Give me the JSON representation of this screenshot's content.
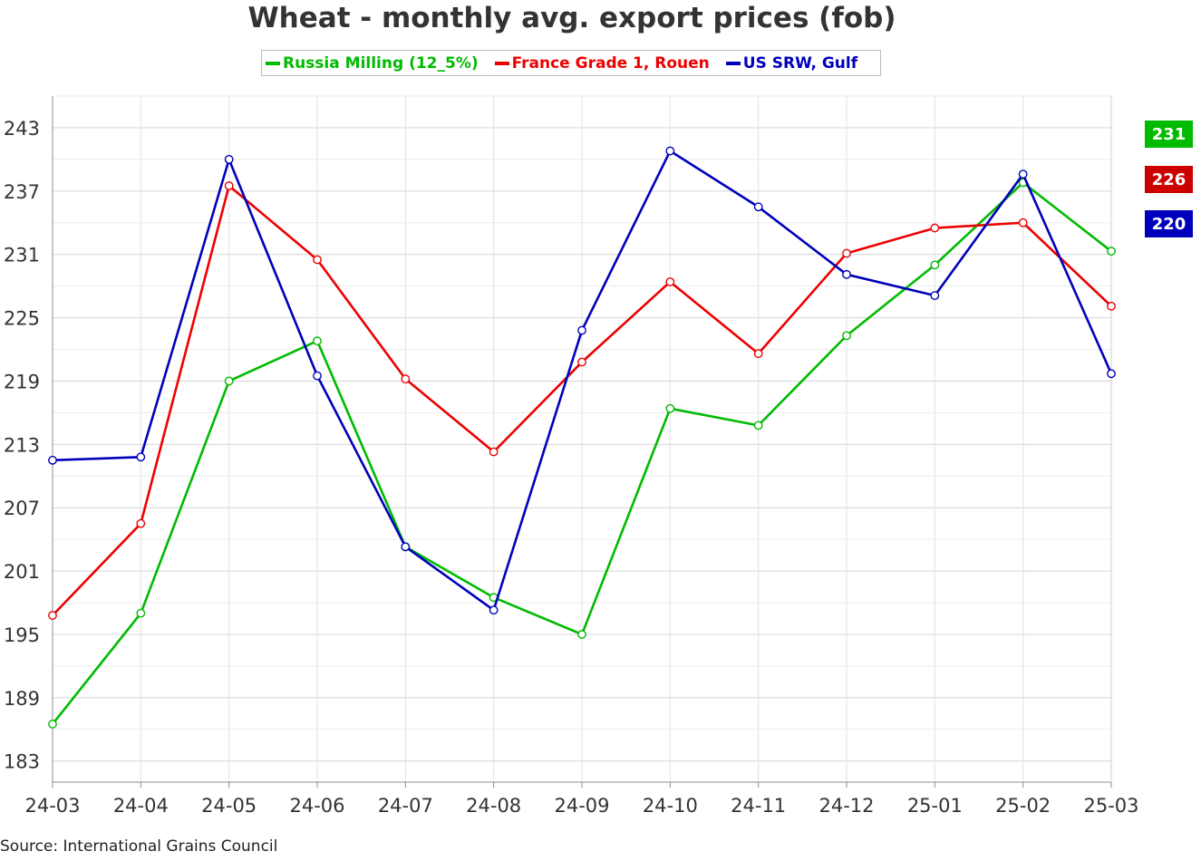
{
  "chart_data": {
    "type": "line",
    "title": "Wheat - monthly avg. export prices (fob)",
    "source": "Source: International Grains Council",
    "categories": [
      "24-03",
      "24-04",
      "24-05",
      "24-06",
      "24-07",
      "24-08",
      "24-09",
      "24-10",
      "24-11",
      "24-12",
      "25-01",
      "25-02",
      "25-03"
    ],
    "yticks": [
      183,
      189,
      195,
      201,
      207,
      213,
      219,
      225,
      231,
      237,
      243
    ],
    "ylim": [
      181,
      246
    ],
    "grid": true,
    "legend_position": "top-center",
    "series": [
      {
        "name": "Russia Milling (12_5%)",
        "color": "#00bb00",
        "values": [
          186.5,
          197,
          219,
          222.8,
          203.3,
          198.5,
          195,
          216.4,
          214.8,
          223.3,
          230,
          237.8,
          231.3
        ]
      },
      {
        "name": "France Grade 1, Rouen",
        "color": "#ee0000",
        "values": [
          196.8,
          205.5,
          237.5,
          230.5,
          219.2,
          212.3,
          220.8,
          228.4,
          221.6,
          231.1,
          233.5,
          234,
          226.1
        ]
      },
      {
        "name": "US SRW, Gulf",
        "color": "#0000bb",
        "values": [
          211.5,
          211.8,
          240,
          219.5,
          203.3,
          197.3,
          223.8,
          240.8,
          235.5,
          229.1,
          227.1,
          238.6,
          219.7
        ]
      }
    ],
    "last_value_badges": [
      {
        "label": "231",
        "color": "#00bb00"
      },
      {
        "label": "226",
        "color": "#cc0000"
      },
      {
        "label": "220",
        "color": "#0000bb"
      }
    ]
  }
}
